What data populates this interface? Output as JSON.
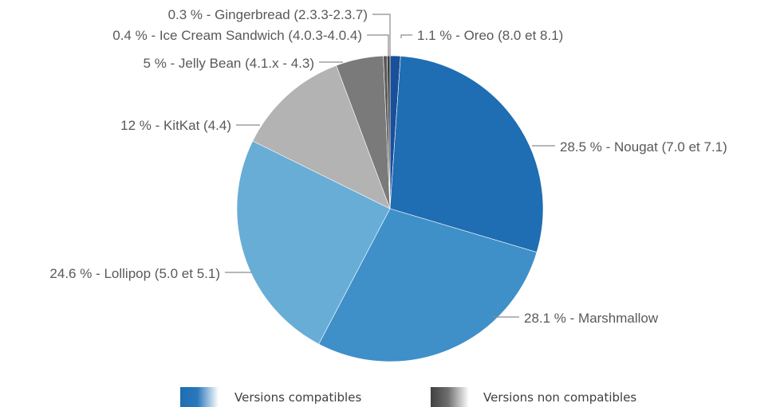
{
  "chart_data": {
    "type": "pie",
    "slices": [
      {
        "label": "1.1 % - Oreo (8.0 et 8.1)",
        "value": 1.1,
        "color": "#1a4f99",
        "group": "compatible"
      },
      {
        "label": "28.5 % - Nougat (7.0 et 7.1)",
        "value": 28.5,
        "color": "#1f6db2",
        "group": "compatible"
      },
      {
        "label": "28.1 % - Marshmallow",
        "value": 28.1,
        "color": "#3f8fc9",
        "group": "compatible"
      },
      {
        "label": "24.6 % - Lollipop (5.0 et 5.1)",
        "value": 24.6,
        "color": "#68add6",
        "group": "compatible"
      },
      {
        "label": "12 % - KitKat (4.4)",
        "value": 12,
        "color": "#b3b3b3",
        "group": "non-compatible"
      },
      {
        "label": "5 % - Jelly Bean (4.1.x - 4.3)",
        "value": 5,
        "color": "#7a7a7a",
        "group": "non-compatible"
      },
      {
        "label": "0.4 % - Ice Cream Sandwich (4.0.3-4.0.4)",
        "value": 0.4,
        "color": "#5a5a5a",
        "group": "non-compatible"
      },
      {
        "label": "0.3 % - Gingerbread (2.3.3-2.3.7)",
        "value": 0.3,
        "color": "#3d3d3d",
        "group": "non-compatible"
      }
    ],
    "legend": [
      {
        "label": "Versions compatibles",
        "color_from": "#1f6db2",
        "color_to": "#ffffff"
      },
      {
        "label": "Versions non compatibles",
        "color_from": "#404040",
        "color_to": "#ffffff"
      }
    ],
    "legend_position": "bottom"
  }
}
